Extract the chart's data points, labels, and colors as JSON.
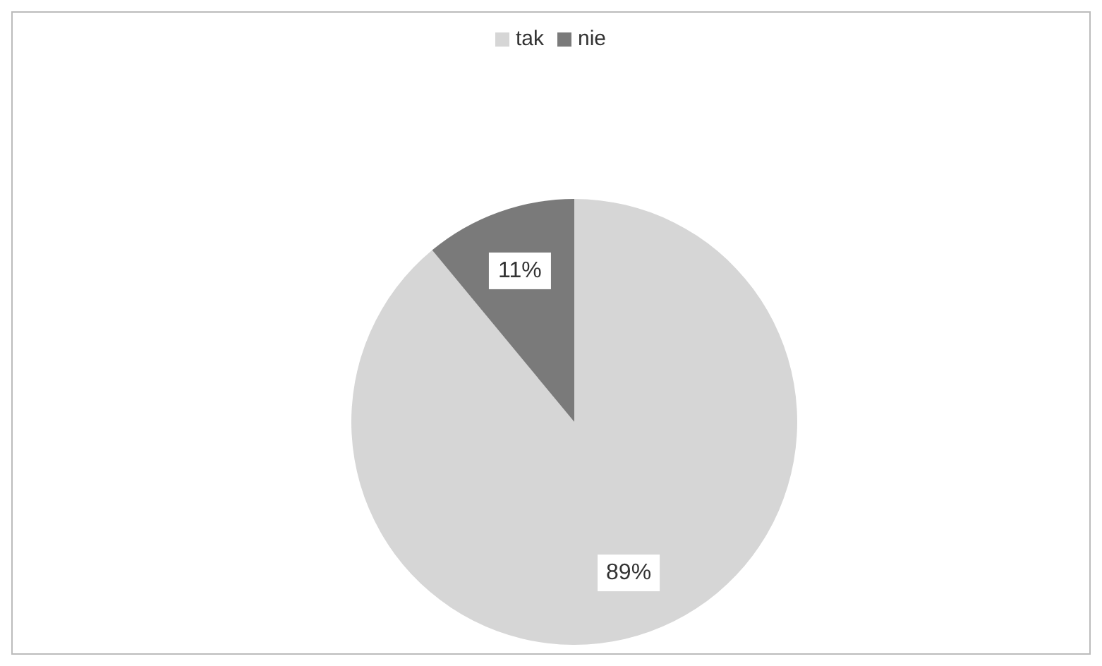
{
  "chart_data": {
    "type": "pie",
    "categories": [
      "tak",
      "nie"
    ],
    "values": [
      89,
      11
    ],
    "colors": [
      "#d6d6d6",
      "#7a7a7a"
    ],
    "legend": "top",
    "value_labels": [
      "89%",
      "11%"
    ]
  }
}
